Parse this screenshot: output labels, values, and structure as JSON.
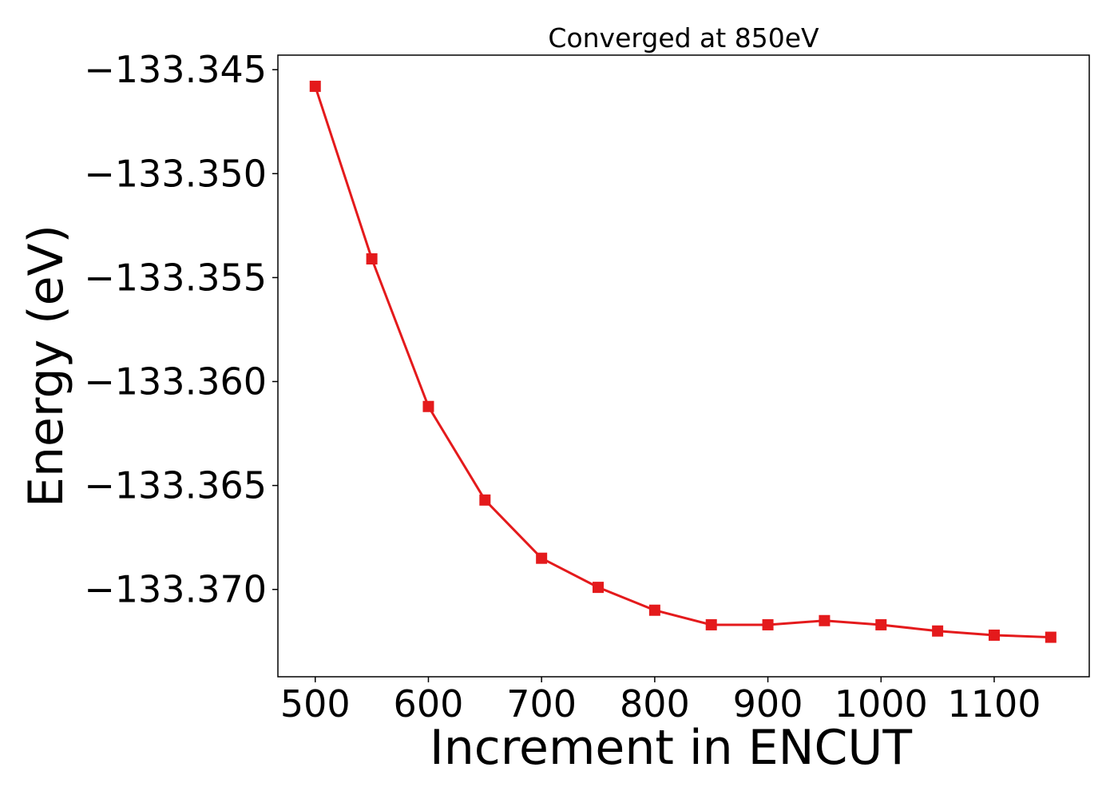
{
  "chart_data": {
    "type": "line",
    "title": "Converged at 850eV",
    "xlabel": "Increment in ENCUT",
    "ylabel": "Energy (eV)",
    "x": [
      500,
      550,
      600,
      650,
      700,
      750,
      800,
      850,
      900,
      950,
      1000,
      1050,
      1100,
      1150
    ],
    "series": [
      {
        "values": [
          -133.3458,
          -133.3541,
          -133.3612,
          -133.3657,
          -133.3685,
          -133.3699,
          -133.371,
          -133.3717,
          -133.3717,
          -133.3715,
          -133.3717,
          -133.372,
          -133.3722,
          -133.3723
        ],
        "color": "#e41a1c",
        "marker": "square"
      }
    ],
    "xlim": [
      467,
      1184
    ],
    "ylim": [
      -133.3742,
      -133.3443
    ],
    "xticks": [
      500,
      600,
      700,
      800,
      900,
      1000,
      1100
    ],
    "xtick_labels": [
      "500",
      "600",
      "700",
      "800",
      "900",
      "1000",
      "1100"
    ],
    "yticks": [
      -133.345,
      -133.35,
      -133.355,
      -133.36,
      -133.365,
      -133.37
    ],
    "ytick_labels": [
      "−133.345",
      "−133.350",
      "−133.355",
      "−133.360",
      "−133.365",
      "−133.370"
    ],
    "grid": false,
    "legend": "none"
  }
}
